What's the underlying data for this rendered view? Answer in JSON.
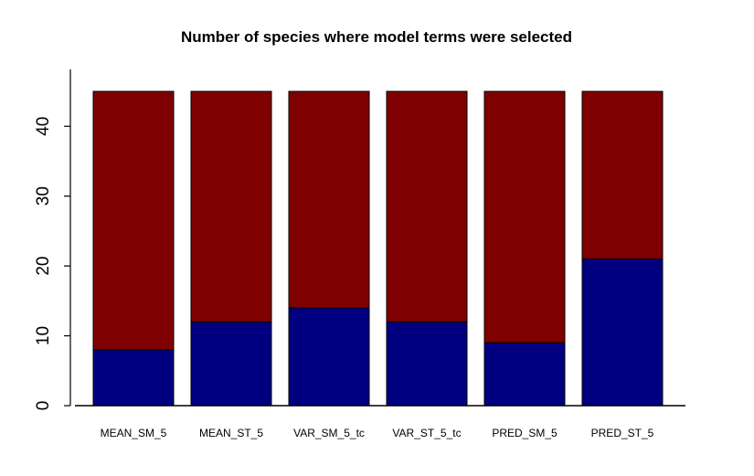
{
  "chart_data": {
    "type": "bar",
    "stacked": true,
    "title": "Number of species where model terms were selected",
    "xlabel": "",
    "ylabel": "",
    "categories": [
      "MEAN_SM_5",
      "MEAN_ST_5",
      "VAR_SM_5_tc",
      "VAR_ST_5_tc",
      "PRED_SM_5",
      "PRED_ST_5"
    ],
    "series": [
      {
        "color": "#000080",
        "values": [
          8,
          12,
          14,
          12,
          9,
          21
        ]
      },
      {
        "color": "#7f0000",
        "values": [
          37,
          33,
          31,
          33,
          36,
          24
        ]
      }
    ],
    "ylim": [
      0,
      45
    ],
    "yticks": [
      0,
      10,
      20,
      30,
      40
    ],
    "grid": false,
    "legend": "none"
  }
}
